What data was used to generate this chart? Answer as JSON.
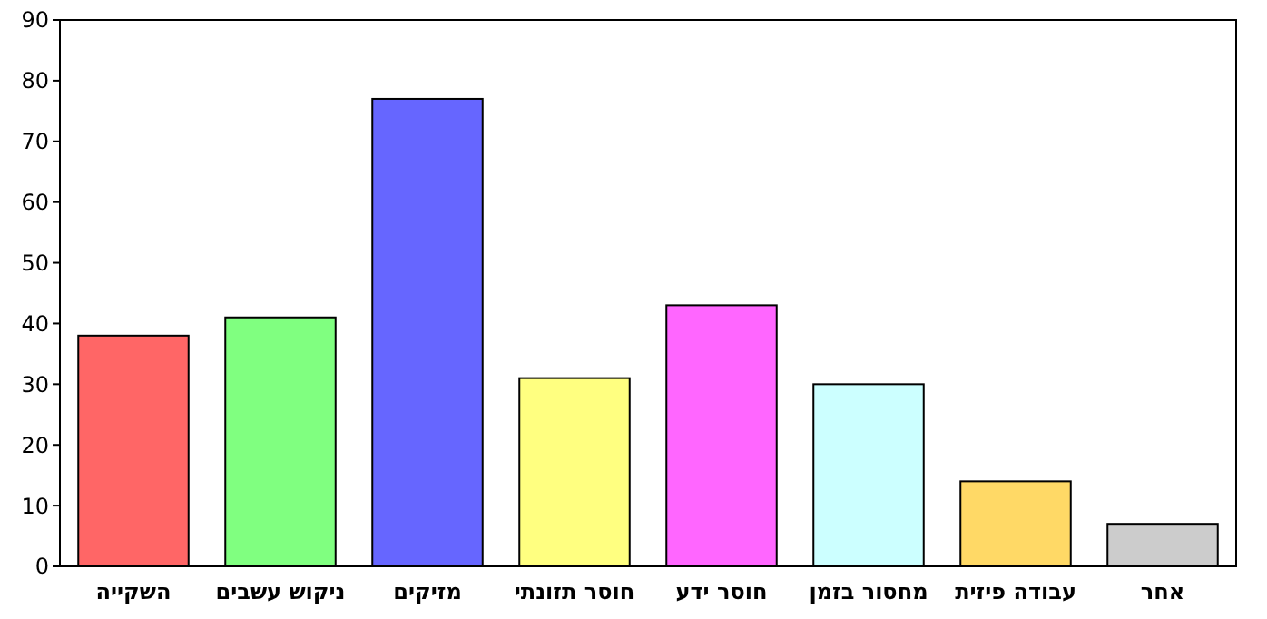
{
  "chart_data": {
    "type": "bar",
    "categories": [
      "השקייה",
      "ניקוש עשבים",
      "מזיקים",
      "חוסר תזונתי",
      "חוסר ידע",
      "מחסור בזמן",
      "עבודה פיזית",
      "אחר"
    ],
    "values": [
      38,
      41,
      77,
      31,
      43,
      30,
      14,
      7
    ],
    "colors": [
      "#ff6666",
      "#80ff80",
      "#6666ff",
      "#ffff80",
      "#ff66ff",
      "#ccffff",
      "#ffd966",
      "#cccccc"
    ],
    "ylim": [
      0,
      90
    ],
    "yticks": [
      0,
      10,
      20,
      30,
      40,
      50,
      60,
      70,
      80,
      90
    ],
    "grid": false
  }
}
